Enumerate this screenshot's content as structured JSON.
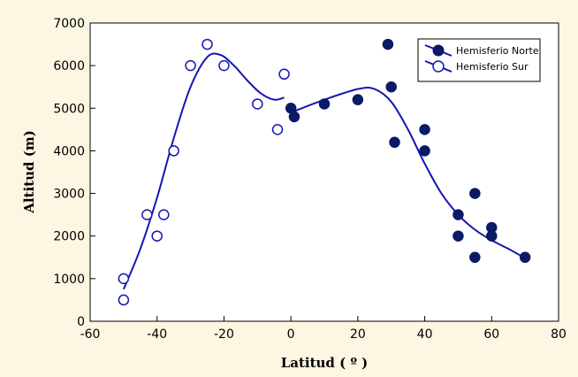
{
  "chart_data": {
    "type": "scatter",
    "xlabel": "Latitud ( º )",
    "ylabel": "Altitud (m)",
    "xlim": [
      -60,
      80
    ],
    "ylim": [
      0,
      7000
    ],
    "x_ticks": [
      -60,
      -40,
      -20,
      0,
      20,
      40,
      60,
      80
    ],
    "y_ticks": [
      0,
      1000,
      2000,
      3000,
      4000,
      5000,
      6000,
      7000
    ],
    "grid": false,
    "legend_position": "top-right",
    "line_color": "#1515b4",
    "marker_color": "#0a1a66",
    "background_color": "#fdf6e3",
    "series": [
      {
        "name": "Hemisferio Norte",
        "marker": "filled-circle",
        "points": [
          {
            "x": 0,
            "y": 5000
          },
          {
            "x": 1,
            "y": 4800
          },
          {
            "x": 10,
            "y": 5100
          },
          {
            "x": 20,
            "y": 5200
          },
          {
            "x": 29,
            "y": 6500
          },
          {
            "x": 30,
            "y": 5500
          },
          {
            "x": 31,
            "y": 4200
          },
          {
            "x": 40,
            "y": 4500
          },
          {
            "x": 40,
            "y": 4000
          },
          {
            "x": 50,
            "y": 2500
          },
          {
            "x": 50,
            "y": 2000
          },
          {
            "x": 55,
            "y": 3000
          },
          {
            "x": 55,
            "y": 1500
          },
          {
            "x": 60,
            "y": 2200
          },
          {
            "x": 60,
            "y": 2000
          },
          {
            "x": 70,
            "y": 1500
          }
        ],
        "fit_curve": [
          {
            "x": 0,
            "y": 4900
          },
          {
            "x": 10,
            "y": 5200
          },
          {
            "x": 20,
            "y": 5450
          },
          {
            "x": 25,
            "y": 5450
          },
          {
            "x": 30,
            "y": 5150
          },
          {
            "x": 35,
            "y": 4500
          },
          {
            "x": 40,
            "y": 3700
          },
          {
            "x": 45,
            "y": 3000
          },
          {
            "x": 50,
            "y": 2500
          },
          {
            "x": 55,
            "y": 2150
          },
          {
            "x": 60,
            "y": 1900
          },
          {
            "x": 65,
            "y": 1700
          },
          {
            "x": 70,
            "y": 1480
          }
        ]
      },
      {
        "name": "Hemisferio Sur",
        "marker": "open-circle",
        "points": [
          {
            "x": -50,
            "y": 1000
          },
          {
            "x": -50,
            "y": 500
          },
          {
            "x": -43,
            "y": 2500
          },
          {
            "x": -40,
            "y": 2000
          },
          {
            "x": -38,
            "y": 2500
          },
          {
            "x": -35,
            "y": 4000
          },
          {
            "x": -30,
            "y": 6000
          },
          {
            "x": -25,
            "y": 6500
          },
          {
            "x": -20,
            "y": 6000
          },
          {
            "x": -10,
            "y": 5100
          },
          {
            "x": -4,
            "y": 4500
          },
          {
            "x": -2,
            "y": 5800
          }
        ],
        "fit_curve": [
          {
            "x": -50,
            "y": 750
          },
          {
            "x": -45,
            "y": 1700
          },
          {
            "x": -40,
            "y": 2900
          },
          {
            "x": -35,
            "y": 4300
          },
          {
            "x": -30,
            "y": 5500
          },
          {
            "x": -25,
            "y": 6200
          },
          {
            "x": -21,
            "y": 6250
          },
          {
            "x": -17,
            "y": 6000
          },
          {
            "x": -13,
            "y": 5650
          },
          {
            "x": -9,
            "y": 5350
          },
          {
            "x": -5,
            "y": 5200
          },
          {
            "x": -2,
            "y": 5250
          }
        ]
      }
    ]
  }
}
